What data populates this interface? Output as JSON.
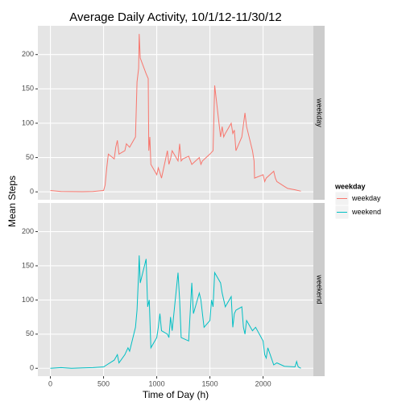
{
  "chart_data": {
    "type": "line",
    "title": "Average Daily Activity, 10/1/12-11/30/12",
    "xlabel": "Time of Day (h)",
    "ylabel": "Mean Steps",
    "legend_title": "weekday",
    "legend": "right",
    "grid": true,
    "facets": true,
    "xlim": [
      -117.75,
      2472.75
    ],
    "xticks": [
      0,
      500,
      1000,
      1500,
      2000
    ],
    "ylim": [
      -11.5,
      241.9
    ],
    "yticks": [
      0,
      50,
      100,
      150,
      200
    ],
    "series": [
      {
        "name": "weekday",
        "color": "#F8766D",
        "x": [
          0,
          100,
          200,
          300,
          400,
          500,
          515,
          530,
          545,
          600,
          615,
          630,
          645,
          700,
          715,
          745,
          800,
          815,
          830,
          835,
          845,
          900,
          920,
          925,
          935,
          945,
          1000,
          1015,
          1030,
          1045,
          1100,
          1115,
          1130,
          1145,
          1200,
          1215,
          1230,
          1245,
          1300,
          1330,
          1400,
          1415,
          1430,
          1500,
          1530,
          1545,
          1600,
          1615,
          1630,
          1645,
          1700,
          1715,
          1730,
          1745,
          1800,
          1815,
          1830,
          1845,
          1900,
          1915,
          1920,
          2000,
          2015,
          2030,
          2100,
          2115,
          2130,
          2200,
          2230,
          2300,
          2355
        ],
        "values": [
          2,
          0.5,
          0.3,
          0.2,
          0.5,
          2,
          10,
          35,
          55,
          48,
          65,
          75,
          55,
          60,
          70,
          65,
          80,
          160,
          180,
          230,
          195,
          172,
          165,
          60,
          80,
          40,
          25,
          35,
          28,
          20,
          60,
          40,
          48,
          60,
          45,
          70,
          45,
          48,
          52,
          40,
          50,
          40,
          45,
          55,
          60,
          155,
          80,
          95,
          80,
          85,
          100,
          85,
          90,
          60,
          80,
          98,
          115,
          95,
          60,
          45,
          20,
          25,
          15,
          20,
          30,
          20,
          15,
          8,
          5,
          3,
          1
        ]
      },
      {
        "name": "weekend",
        "color": "#00BFC4",
        "x": [
          0,
          100,
          200,
          300,
          400,
          500,
          530,
          600,
          630,
          645,
          700,
          730,
          745,
          800,
          815,
          830,
          835,
          845,
          900,
          915,
          930,
          945,
          1000,
          1015,
          1030,
          1045,
          1100,
          1115,
          1130,
          1145,
          1200,
          1215,
          1230,
          1300,
          1330,
          1345,
          1400,
          1415,
          1430,
          1445,
          1500,
          1515,
          1530,
          1545,
          1600,
          1615,
          1645,
          1700,
          1715,
          1730,
          1745,
          1800,
          1815,
          1830,
          1845,
          1900,
          1930,
          2000,
          2015,
          2030,
          2045,
          2100,
          2130,
          2200,
          2300,
          2315,
          2330,
          2355
        ],
        "values": [
          0,
          1,
          0,
          0.5,
          1,
          2,
          5,
          12,
          20,
          8,
          20,
          30,
          25,
          60,
          85,
          140,
          165,
          125,
          160,
          90,
          100,
          30,
          45,
          60,
          80,
          55,
          50,
          45,
          75,
          55,
          140,
          100,
          45,
          40,
          125,
          80,
          110,
          100,
          80,
          60,
          70,
          100,
          90,
          140,
          125,
          110,
          90,
          105,
          60,
          80,
          85,
          90,
          60,
          50,
          70,
          55,
          60,
          40,
          20,
          15,
          30,
          5,
          8,
          3,
          2,
          10,
          2,
          0
        ]
      }
    ]
  }
}
